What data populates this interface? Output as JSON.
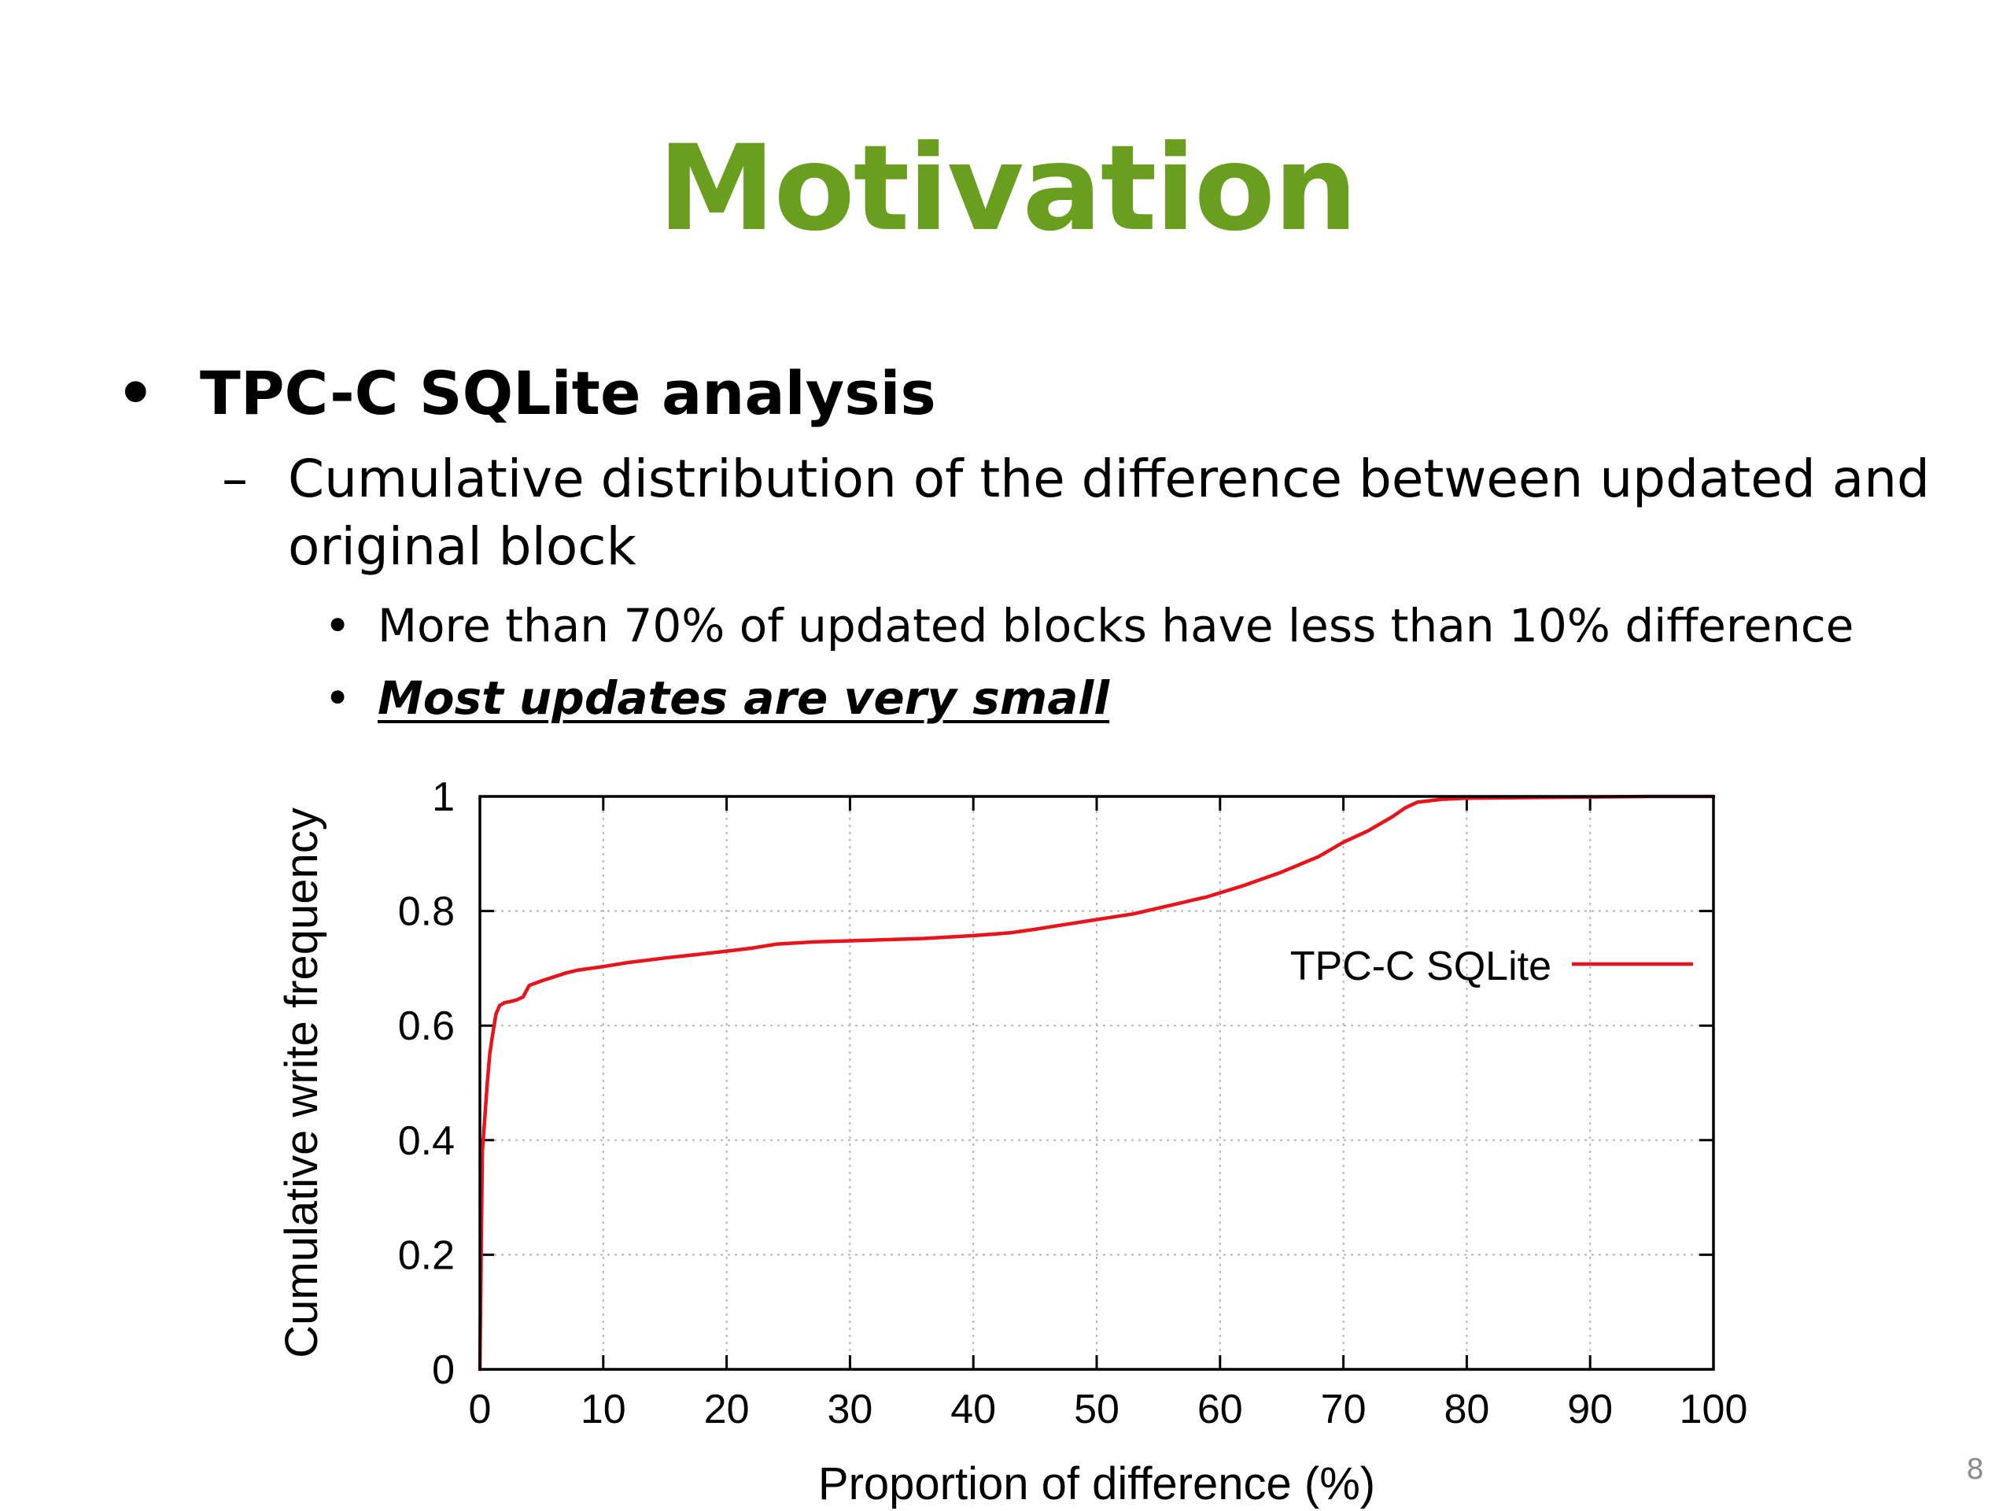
{
  "slide": {
    "title": "Motivation",
    "title_color": "#6a9e1f",
    "page_number": "8",
    "bullets": {
      "l1_mark": "•",
      "l1_text": "TPC-C SQLite analysis",
      "l2_mark": "–",
      "l2_text": "Cumulative distribution of the difference between updated and original block",
      "l3_mark": "•",
      "l3_items": [
        "More than 70% of updated blocks have less than 10% difference",
        "Most updates are very small"
      ]
    }
  },
  "chart_data": {
    "type": "line",
    "title": "",
    "xlabel": "Proportion of difference (%)",
    "ylabel": "Cumulative write frequency",
    "xlim": [
      0,
      100
    ],
    "ylim": [
      0,
      1
    ],
    "xticks": [
      "0",
      "10",
      "20",
      "30",
      "40",
      "50",
      "60",
      "70",
      "80",
      "90",
      "100"
    ],
    "yticks": [
      "0",
      "0.2",
      "0.4",
      "0.6",
      "0.8",
      "1"
    ],
    "grid": true,
    "legend_position": "top-right",
    "series": [
      {
        "name": "TPC-C SQLite",
        "color": "#e8141c",
        "x": [
          0,
          0.1,
          0.2,
          0.4,
          0.6,
          0.8,
          1.0,
          1.3,
          1.6,
          2.0,
          2.5,
          3.0,
          3.5,
          4.0,
          5,
          6,
          7,
          8,
          10,
          12,
          15,
          18,
          20,
          22,
          24,
          27,
          30,
          33,
          36,
          40,
          43,
          45,
          47,
          50,
          53,
          56,
          59,
          62,
          65,
          68,
          70,
          72,
          74,
          75,
          76,
          78,
          80,
          85,
          90,
          95,
          100
        ],
        "y": [
          0,
          0.2,
          0.38,
          0.44,
          0.5,
          0.55,
          0.58,
          0.62,
          0.635,
          0.64,
          0.642,
          0.645,
          0.65,
          0.67,
          0.678,
          0.685,
          0.692,
          0.697,
          0.703,
          0.71,
          0.718,
          0.725,
          0.73,
          0.735,
          0.742,
          0.746,
          0.748,
          0.75,
          0.752,
          0.757,
          0.762,
          0.768,
          0.775,
          0.785,
          0.795,
          0.81,
          0.825,
          0.845,
          0.868,
          0.895,
          0.92,
          0.94,
          0.965,
          0.98,
          0.99,
          0.995,
          0.997,
          0.998,
          0.999,
          1.0,
          1.0
        ]
      }
    ]
  }
}
